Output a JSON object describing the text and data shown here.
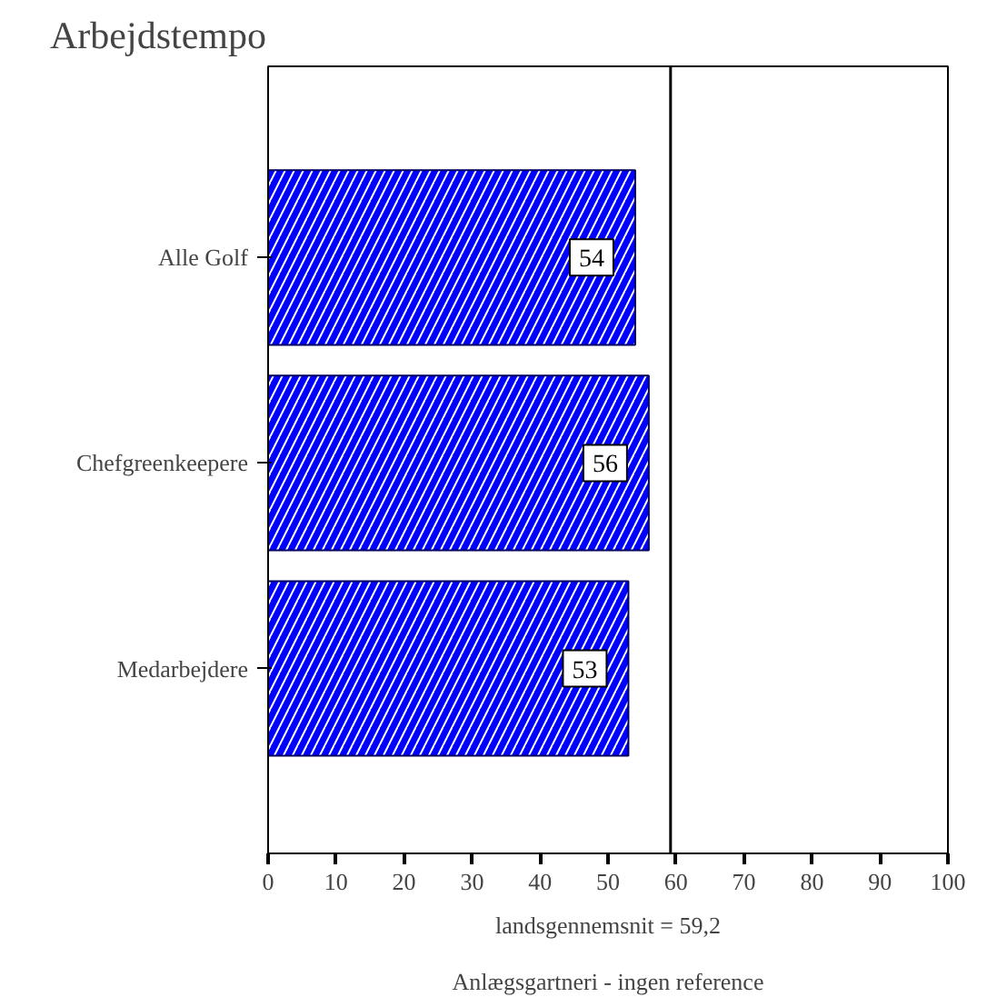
{
  "chart_data": {
    "type": "bar",
    "orientation": "horizontal",
    "title": "Arbejdstempo",
    "categories": [
      "Alle Golf",
      "Chefgreenkeepere",
      "Medarbejdere"
    ],
    "values": [
      54,
      56,
      53
    ],
    "color": "#0000ff",
    "data_labels": true,
    "xlim": [
      0,
      100
    ],
    "xticks": [
      0,
      10,
      20,
      30,
      40,
      50,
      60,
      70,
      80,
      90,
      100
    ],
    "ref_lines": [
      {
        "axis": "x",
        "value": 59.2
      }
    ],
    "annotations": [
      "landsgennemsnit = 59,2",
      "Anlægsgartneri - ingen reference"
    ],
    "grid": false
  }
}
